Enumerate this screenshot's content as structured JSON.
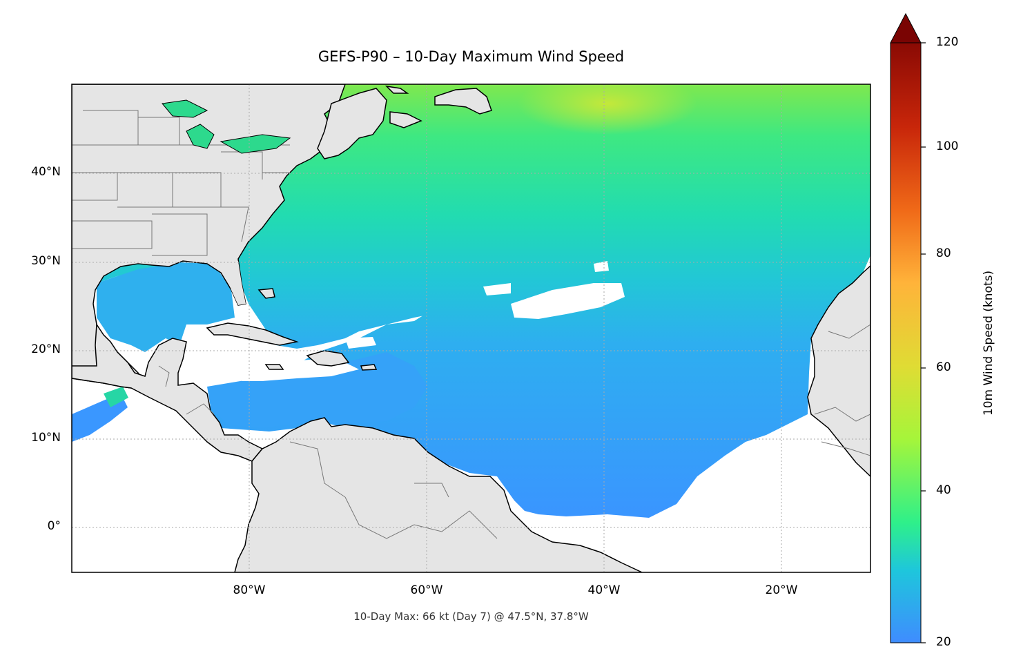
{
  "title": "GEFS-P90 – 10-Day Maximum Wind Speed",
  "footer": "10-Day Max: 66 kt (Day 7) @ 47.5°N, 37.8°W",
  "lat_ticks": [
    "40°N",
    "30°N",
    "20°N",
    "10°N",
    "0°"
  ],
  "lon_ticks": [
    "80°W",
    "60°W",
    "40°W",
    "20°W"
  ],
  "colorbar": {
    "label": "10m Wind Speed (knots)",
    "ticks": [
      "20",
      "40",
      "60",
      "80",
      "100",
      "120"
    ],
    "min": 20,
    "max": 120,
    "extend": "max",
    "colors": [
      "#3f8cff",
      "#1ec6dc",
      "#2ef08a",
      "#a6f53a",
      "#ffb33a",
      "#f06a18",
      "#c8260a",
      "#7a0403"
    ]
  },
  "map": {
    "extent_lon": [
      -100,
      -10
    ],
    "extent_lat": [
      -5,
      50
    ],
    "land_color": "#e5e5e5",
    "max_location": {
      "lat": 47.5,
      "lon": -37.8,
      "value": 66,
      "day": 7
    }
  }
}
